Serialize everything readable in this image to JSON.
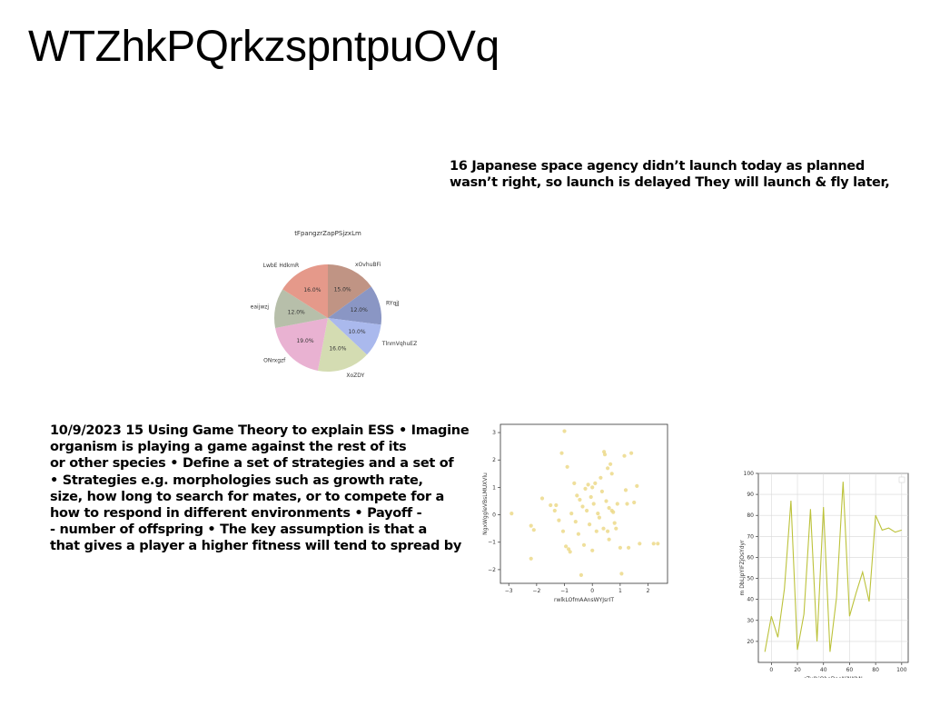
{
  "page": {
    "title": "WTZhkPQrkzspntpuOVq"
  },
  "news": {
    "lines": [
      "16 Japanese space agency didn’t launch today as planned",
      "wasn’t right, so launch is delayed They will launch & fly later,"
    ]
  },
  "notes": {
    "lines": [
      "10/9/2023 15 Using Game Theory to explain ESS • Imagine",
      "organism is playing a game against the rest of its",
      "or other species • Define a set of strategies and a set of",
      "• Strategies e.g. morphologies such as growth rate,",
      "size, how long to search for mates, or to compete for a",
      "how to respond in different environments • Payoff -",
      "- number of offspring • The key assumption is that a",
      "that gives a player a higher fitness will tend to spread by"
    ]
  },
  "chart_data": [
    {
      "type": "pie",
      "title": "tFpangzrZapPSjzxLm",
      "labels": [
        "xOvhuBFi",
        "RYqjJ",
        "TlnmVqhuEZ",
        "XoZDY",
        "ONrxgzf",
        "eaijwzj",
        "LwbE HdkmR"
      ],
      "values": [
        15.0,
        12.0,
        10.0,
        16.0,
        19.0,
        12.0,
        16.0
      ],
      "value_labels": [
        "15.0%",
        "12.0%",
        "10.0%",
        "16.0%",
        "19.0%",
        "12.0%",
        "16.0%"
      ],
      "colors": [
        "#c09484",
        "#8a96c4",
        "#aab9ed",
        "#d4dcb2",
        "#e9b2d2",
        "#b7bfaa",
        "#e5998a"
      ]
    },
    {
      "type": "scatter",
      "xlabel": "rwlkLOfmAAnsWYJsrIT",
      "ylabel": "NgxWggleVBsLMUXVlu",
      "xlim": [
        -3.3,
        2.7
      ],
      "ylim": [
        -2.5,
        3.3
      ],
      "xticks": [
        -3,
        -2,
        -1,
        0,
        1,
        2
      ],
      "yticks": [
        -2,
        -1,
        0,
        1,
        2,
        3
      ],
      "color": "#ecd98a",
      "points": [
        [
          -2.9,
          0.05
        ],
        [
          -2.2,
          -0.4
        ],
        [
          -2.1,
          -0.55
        ],
        [
          -2.2,
          -1.6
        ],
        [
          -1.8,
          0.6
        ],
        [
          -1.5,
          0.35
        ],
        [
          -1.35,
          0.15
        ],
        [
          -1.2,
          -0.2
        ],
        [
          -1.3,
          0.35
        ],
        [
          -1.05,
          -0.6
        ],
        [
          -1.0,
          3.05
        ],
        [
          -1.1,
          2.25
        ],
        [
          -0.9,
          1.75
        ],
        [
          -0.95,
          -1.15
        ],
        [
          -0.85,
          -1.25
        ],
        [
          -0.8,
          -1.35
        ],
        [
          -0.75,
          0.05
        ],
        [
          -0.65,
          1.15
        ],
        [
          -0.6,
          -0.25
        ],
        [
          -0.55,
          0.7
        ],
        [
          -0.5,
          -0.7
        ],
        [
          -0.45,
          0.55
        ],
        [
          -0.4,
          -2.2
        ],
        [
          -0.35,
          0.3
        ],
        [
          -0.3,
          -1.1
        ],
        [
          -0.25,
          0.95
        ],
        [
          -0.2,
          0.15
        ],
        [
          -0.15,
          1.1
        ],
        [
          -0.1,
          -0.35
        ],
        [
          -0.05,
          0.65
        ],
        [
          0.0,
          1.0
        ],
        [
          0.0,
          -1.3
        ],
        [
          0.05,
          0.4
        ],
        [
          0.1,
          1.15
        ],
        [
          0.15,
          -0.6
        ],
        [
          0.2,
          0.05
        ],
        [
          0.25,
          -0.1
        ],
        [
          0.3,
          1.35
        ],
        [
          0.35,
          0.85
        ],
        [
          0.4,
          -0.5
        ],
        [
          0.42,
          2.3
        ],
        [
          0.45,
          2.2
        ],
        [
          0.5,
          0.5
        ],
        [
          0.55,
          1.7
        ],
        [
          0.55,
          -0.6
        ],
        [
          0.6,
          -0.9
        ],
        [
          0.6,
          0.25
        ],
        [
          0.65,
          1.85
        ],
        [
          0.7,
          1.5
        ],
        [
          0.7,
          0.15
        ],
        [
          0.75,
          0.1
        ],
        [
          0.8,
          -0.3
        ],
        [
          0.85,
          -0.5
        ],
        [
          0.9,
          0.4
        ],
        [
          1.0,
          -1.2
        ],
        [
          1.05,
          -2.15
        ],
        [
          1.15,
          2.15
        ],
        [
          1.2,
          0.9
        ],
        [
          1.25,
          0.4
        ],
        [
          1.3,
          -1.2
        ],
        [
          1.4,
          2.25
        ],
        [
          1.5,
          0.45
        ],
        [
          1.6,
          1.05
        ],
        [
          1.7,
          -1.05
        ],
        [
          2.2,
          -1.05
        ],
        [
          2.35,
          -1.05
        ]
      ]
    },
    {
      "type": "line",
      "xlabel": "rZxJhjOheDaoNjNKbN",
      "ylabel": "m DbLJpYIFZjOsYdyr",
      "xlim": [
        -10,
        105
      ],
      "ylim": [
        10,
        100
      ],
      "xticks": [
        0,
        20,
        40,
        60,
        80,
        100
      ],
      "yticks": [
        20,
        30,
        40,
        50,
        60,
        70,
        80,
        90,
        100
      ],
      "color": "#bcc23a",
      "x": [
        -5,
        0,
        5,
        10,
        15,
        20,
        25,
        30,
        35,
        40,
        45,
        50,
        55,
        60,
        65,
        70,
        75,
        80,
        85,
        90,
        95,
        100
      ],
      "y": [
        15,
        32,
        22,
        45,
        87,
        16,
        33,
        83,
        20,
        84,
        15,
        41,
        96,
        32,
        43,
        53,
        39,
        80,
        73,
        74,
        72,
        73
      ]
    }
  ]
}
